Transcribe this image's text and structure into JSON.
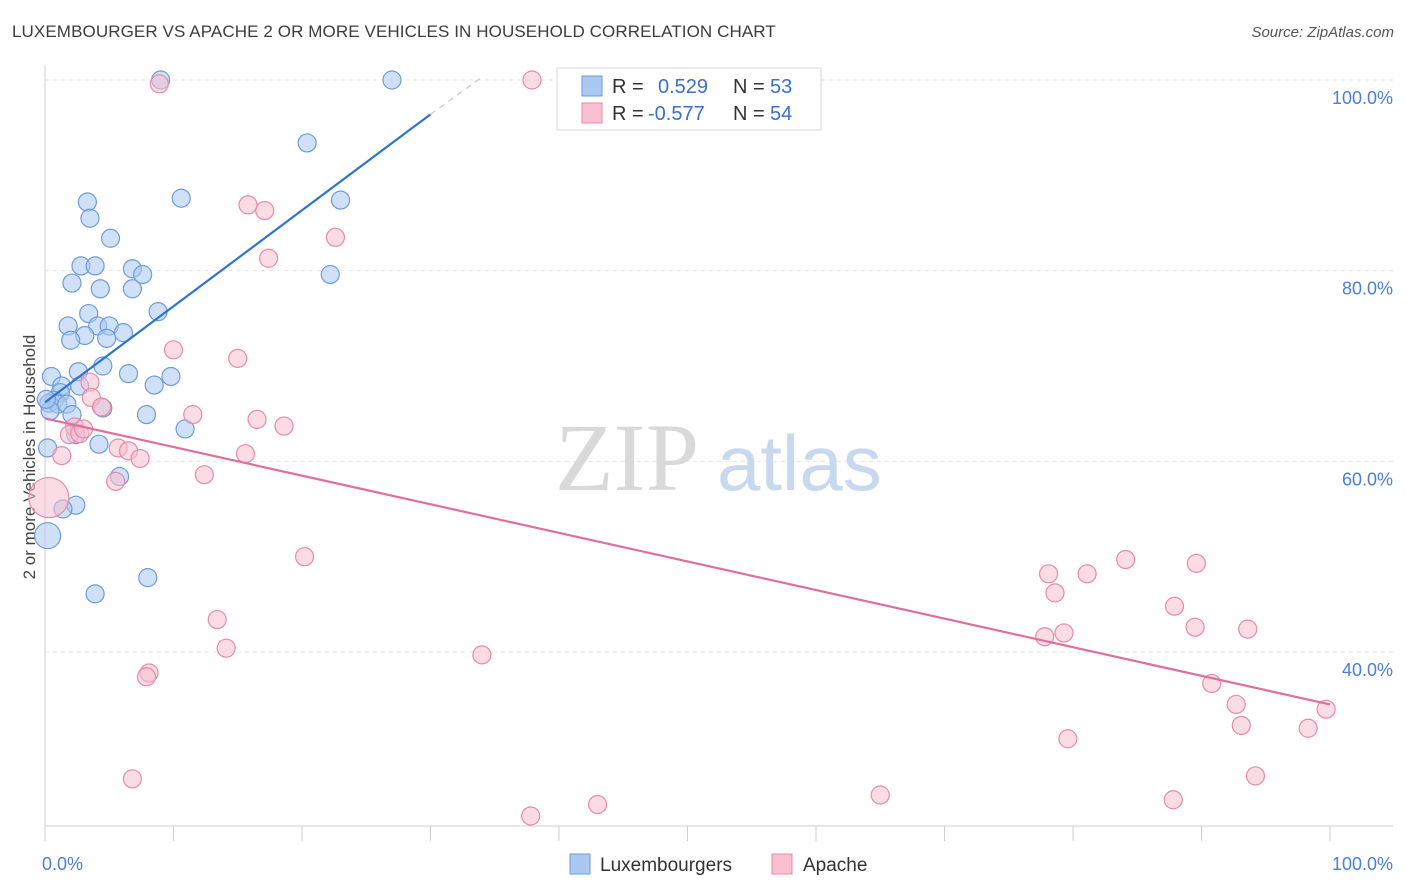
{
  "title": "LUXEMBOURGER VS APACHE 2 OR MORE VEHICLES IN HOUSEHOLD CORRELATION CHART",
  "source": "Source: ZipAtlas.com",
  "watermark": {
    "zip": "ZIP",
    "atlas": "atlas"
  },
  "colors": {
    "blue_fill": "#aac8f0",
    "blue_stroke": "#6f9bd8",
    "blue_line": "#2f74cc",
    "pink_fill": "#f8c0d0",
    "pink_stroke": "#e88aa8",
    "pink_line": "#e0709a",
    "tick_text": "#4a7fd4",
    "grid": "#e5e5e5"
  },
  "legend": {
    "row1": {
      "r_label": "R =",
      "r_value": "0.529",
      "n_label": "N =",
      "n_value": "53"
    },
    "row2": {
      "r_label": "R =",
      "r_value": "-0.577",
      "n_label": "N =",
      "n_value": "54"
    }
  },
  "chart_data": {
    "type": "scatter",
    "title": "LUXEMBOURGER VS APACHE 2 OR MORE VEHICLES IN HOUSEHOLD CORRELATION CHART",
    "xlabel": "",
    "ylabel": "2 or more Vehicles in Household",
    "xlim": [
      0,
      100
    ],
    "ylim": [
      20,
      100
    ],
    "x_tick_labels": [
      "0.0%",
      "100.0%"
    ],
    "y_tick_labels": [
      {
        "value": 100,
        "label": "100.0%"
      },
      {
        "value": 80,
        "label": "80.0%"
      },
      {
        "value": 60,
        "label": "60.0%"
      },
      {
        "value": 40,
        "label": "40.0%"
      }
    ],
    "grid": true,
    "legend_position": "top-center",
    "series": [
      {
        "name": "Luxembourgers",
        "trend": {
          "x0": 0,
          "y0": 66.2,
          "x1": 30,
          "y1": 96.4,
          "dash_to_x": 34,
          "dash_to_y": 100.3
        },
        "points": [
          [
            9.0,
            100.0
          ],
          [
            27.0,
            100.0
          ],
          [
            20.4,
            93.4
          ],
          [
            10.6,
            87.6
          ],
          [
            23.0,
            87.4
          ],
          [
            3.3,
            87.2
          ],
          [
            3.5,
            85.5
          ],
          [
            5.1,
            83.4
          ],
          [
            2.8,
            80.5
          ],
          [
            3.9,
            80.5
          ],
          [
            6.8,
            80.2
          ],
          [
            7.6,
            79.6
          ],
          [
            22.2,
            79.6
          ],
          [
            2.1,
            78.7
          ],
          [
            4.3,
            78.1
          ],
          [
            6.8,
            78.1
          ],
          [
            8.8,
            75.7
          ],
          [
            3.4,
            75.5
          ],
          [
            1.8,
            74.2
          ],
          [
            4.1,
            74.2
          ],
          [
            5.0,
            74.2
          ],
          [
            6.1,
            73.5
          ],
          [
            3.1,
            73.2
          ],
          [
            2.0,
            72.7
          ],
          [
            4.8,
            72.9
          ],
          [
            4.5,
            70.0
          ],
          [
            6.5,
            69.2
          ],
          [
            9.8,
            68.9
          ],
          [
            0.5,
            68.9
          ],
          [
            2.6,
            69.4
          ],
          [
            1.3,
            67.9
          ],
          [
            2.7,
            67.9
          ],
          [
            8.5,
            68.0
          ],
          [
            1.2,
            67.2
          ],
          [
            0.7,
            66.4
          ],
          [
            0.3,
            66.1
          ],
          [
            1.0,
            66.0
          ],
          [
            1.7,
            66.0
          ],
          [
            0.4,
            65.3
          ],
          [
            4.5,
            65.6
          ],
          [
            7.9,
            64.9
          ],
          [
            2.1,
            64.9
          ],
          [
            10.9,
            63.4
          ],
          [
            2.4,
            62.8
          ],
          [
            4.2,
            61.8
          ],
          [
            0.2,
            61.4
          ],
          [
            5.8,
            58.4
          ],
          [
            2.4,
            55.4
          ],
          [
            1.4,
            55.0
          ],
          [
            0.2,
            52.2
          ],
          [
            8.0,
            47.8
          ],
          [
            3.9,
            46.1
          ],
          [
            0.1,
            66.5
          ]
        ]
      },
      {
        "name": "Apache",
        "trend": {
          "x0": 0,
          "y0": 64.5,
          "x1": 100,
          "y1": 34.5
        },
        "points": [
          [
            37.9,
            100.0
          ],
          [
            8.9,
            99.6
          ],
          [
            15.8,
            86.9
          ],
          [
            17.1,
            86.3
          ],
          [
            22.6,
            83.5
          ],
          [
            17.4,
            81.3
          ],
          [
            10.0,
            71.7
          ],
          [
            15.0,
            70.8
          ],
          [
            3.5,
            68.3
          ],
          [
            3.6,
            66.7
          ],
          [
            4.4,
            65.7
          ],
          [
            11.5,
            64.9
          ],
          [
            16.5,
            64.4
          ],
          [
            18.6,
            63.7
          ],
          [
            2.3,
            63.6
          ],
          [
            1.9,
            62.8
          ],
          [
            2.7,
            62.9
          ],
          [
            3.0,
            63.4
          ],
          [
            5.7,
            61.4
          ],
          [
            6.5,
            61.1
          ],
          [
            1.3,
            60.6
          ],
          [
            15.6,
            60.8
          ],
          [
            7.4,
            60.3
          ],
          [
            12.4,
            58.6
          ],
          [
            5.5,
            57.9
          ],
          [
            0.3,
            56.2
          ],
          [
            20.2,
            50.0
          ],
          [
            81.1,
            48.2
          ],
          [
            84.1,
            49.7
          ],
          [
            89.6,
            49.3
          ],
          [
            78.1,
            48.2
          ],
          [
            78.6,
            46.2
          ],
          [
            87.9,
            44.8
          ],
          [
            13.4,
            43.4
          ],
          [
            89.5,
            42.6
          ],
          [
            93.6,
            42.4
          ],
          [
            79.3,
            42.0
          ],
          [
            77.8,
            41.6
          ],
          [
            14.1,
            40.4
          ],
          [
            34.0,
            39.7
          ],
          [
            8.1,
            37.8
          ],
          [
            7.9,
            37.4
          ],
          [
            90.8,
            36.7
          ],
          [
            92.7,
            34.5
          ],
          [
            99.7,
            34.0
          ],
          [
            93.1,
            32.3
          ],
          [
            98.3,
            32.0
          ],
          [
            79.6,
            30.9
          ],
          [
            94.2,
            27.0
          ],
          [
            6.8,
            26.7
          ],
          [
            65.0,
            25.0
          ],
          [
            87.8,
            24.5
          ],
          [
            43.0,
            24.0
          ],
          [
            37.8,
            22.8
          ]
        ]
      }
    ]
  },
  "bottom_legend": [
    {
      "name": "Luxembourgers"
    },
    {
      "name": "Apache"
    }
  ]
}
